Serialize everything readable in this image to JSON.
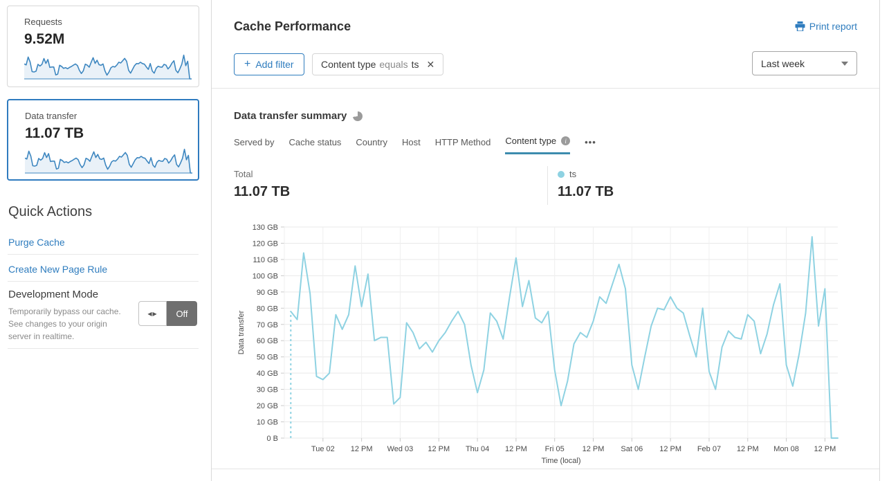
{
  "header": {
    "title": "Cache Performance",
    "print_report_label": "Print report"
  },
  "filters": {
    "add_filter_label": "Add filter",
    "active_filter": {
      "field": "Content type",
      "operator": "equals",
      "value": "ts"
    },
    "time_range": "Last week"
  },
  "sidebar": {
    "cards": [
      {
        "label": "Requests",
        "value": "9.52M",
        "selected": false
      },
      {
        "label": "Data transfer",
        "value": "11.07 TB",
        "selected": true
      }
    ],
    "quick_actions": {
      "title": "Quick Actions",
      "links": [
        "Purge Cache",
        "Create New Page Rule"
      ],
      "development_mode": {
        "title": "Development Mode",
        "description": "Temporarily bypass our cache. See changes to your origin server in realtime.",
        "toggle_state": "Off"
      }
    }
  },
  "summary": {
    "title": "Data transfer summary",
    "tabs": [
      {
        "label": "Served by",
        "active": false,
        "has_info_icon": false
      },
      {
        "label": "Cache status",
        "active": false,
        "has_info_icon": false
      },
      {
        "label": "Country",
        "active": false,
        "has_info_icon": false
      },
      {
        "label": "Host",
        "active": false,
        "has_info_icon": false
      },
      {
        "label": "HTTP Method",
        "active": false,
        "has_info_icon": false
      },
      {
        "label": "Content type",
        "active": true,
        "has_info_icon": true
      }
    ],
    "tabs_more": "•••",
    "total": {
      "label": "Total",
      "value": "11.07 TB"
    },
    "legend": [
      {
        "name": "ts",
        "value": "11.07 TB",
        "color": "#8ed2e2"
      }
    ]
  },
  "chart_data": {
    "type": "line",
    "title": "Data transfer summary",
    "xlabel": "Time (local)",
    "ylabel": "Data transfer",
    "y_unit": "GB",
    "ylim": [
      0,
      130
    ],
    "y_tick_step": 10,
    "y_tick_labels": [
      "0 B",
      "10 GB",
      "20 GB",
      "30 GB",
      "40 GB",
      "50 GB",
      "60 GB",
      "70 GB",
      "80 GB",
      "90 GB",
      "100 GB",
      "110 GB",
      "120 GB",
      "130 GB"
    ],
    "x_ticks": [
      {
        "label": "Tue 02",
        "hour": 0
      },
      {
        "label": "12 PM",
        "hour": 12
      },
      {
        "label": "Wed 03",
        "hour": 24
      },
      {
        "label": "12 PM",
        "hour": 36
      },
      {
        "label": "Thu 04",
        "hour": 48
      },
      {
        "label": "12 PM",
        "hour": 60
      },
      {
        "label": "Fri 05",
        "hour": 72
      },
      {
        "label": "12 PM",
        "hour": 84
      },
      {
        "label": "Sat 06",
        "hour": 96
      },
      {
        "label": "12 PM",
        "hour": 108
      },
      {
        "label": "Feb 07",
        "hour": 120
      },
      {
        "label": "12 PM",
        "hour": 132
      },
      {
        "label": "Mon 08",
        "hour": 144
      },
      {
        "label": "12 PM",
        "hour": 156
      }
    ],
    "x_domain_hours": [
      -12,
      160
    ],
    "grid": true,
    "dashed_start": true,
    "series": [
      {
        "name": "ts",
        "color": "#8ed2e2",
        "unit": "GB",
        "start_hour": -10,
        "interval_hours": 2,
        "values": [
          78,
          73,
          114,
          89,
          38,
          36,
          40,
          76,
          67,
          76,
          106,
          81,
          101,
          60,
          62,
          62,
          21,
          25,
          71,
          65,
          55,
          59,
          53,
          60,
          65,
          72,
          78,
          70,
          45,
          28,
          42,
          77,
          72,
          61,
          87,
          111,
          81,
          97,
          74,
          71,
          78,
          42,
          20,
          35,
          58,
          65,
          62,
          72,
          87,
          83,
          95,
          107,
          92,
          45,
          30,
          50,
          69,
          80,
          79,
          87,
          80,
          77,
          63,
          50,
          80,
          41,
          30,
          56,
          66,
          62,
          61,
          76,
          72,
          52,
          64,
          82,
          95,
          45,
          32,
          52,
          77,
          124,
          69,
          92,
          0,
          0
        ]
      }
    ]
  },
  "icons": {
    "plus": "+",
    "close": "✕",
    "info": "i",
    "toggle_knob": "◀▶",
    "more": "•••"
  },
  "colors": {
    "accent_blue": "#2e7cbe",
    "selected_card_border": "#2f7bbf",
    "series_ts": "#8ed2e2",
    "sparkline_stroke": "#3e87c0",
    "sparkline_fill": "#e9f1f8",
    "active_tab_underline": "#3d8bae",
    "toggle_off_bg": "#6f6f6f",
    "grid_line": "#e9e9e9"
  }
}
